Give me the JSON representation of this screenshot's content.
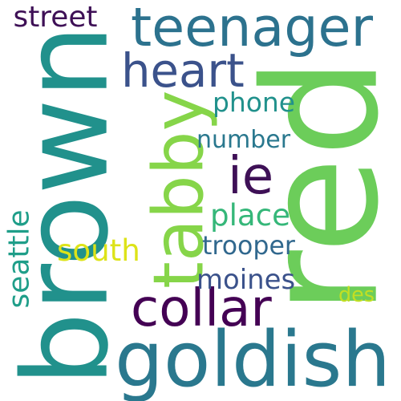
{
  "words": [
    {
      "key": "red",
      "text": "red",
      "color": "#6ccd5a",
      "rotated": true
    },
    {
      "key": "brown",
      "text": "brown",
      "color": "#21918c",
      "rotated": true
    },
    {
      "key": "goldish",
      "text": "goldish",
      "color": "#2a788e",
      "rotated": false
    },
    {
      "key": "teenager",
      "text": "teenager",
      "color": "#2c728e",
      "rotated": false
    },
    {
      "key": "heart",
      "text": "heart",
      "color": "#3b528b",
      "rotated": false
    },
    {
      "key": "tabby",
      "text": "tabby",
      "color": "#86d549",
      "rotated": true
    },
    {
      "key": "collar",
      "text": "collar",
      "color": "#440154",
      "rotated": false
    },
    {
      "key": "ie",
      "text": "ie",
      "color": "#3e1056",
      "rotated": false
    },
    {
      "key": "phone",
      "text": "phone",
      "color": "#21918c",
      "rotated": false
    },
    {
      "key": "number",
      "text": "number",
      "color": "#2a788e",
      "rotated": false
    },
    {
      "key": "place",
      "text": "place",
      "color": "#35b779",
      "rotated": false
    },
    {
      "key": "trooper",
      "text": "trooper",
      "color": "#31688e",
      "rotated": false
    },
    {
      "key": "south",
      "text": "south",
      "color": "#dde318",
      "rotated": false
    },
    {
      "key": "moines",
      "text": "moines",
      "color": "#3b528b",
      "rotated": false
    },
    {
      "key": "seattle",
      "text": "seattle",
      "color": "#1f9e89",
      "rotated": true
    },
    {
      "key": "street",
      "text": "street",
      "color": "#3e1056",
      "rotated": false
    },
    {
      "key": "des",
      "text": "des",
      "color": "#c2df23",
      "rotated": false
    }
  ]
}
